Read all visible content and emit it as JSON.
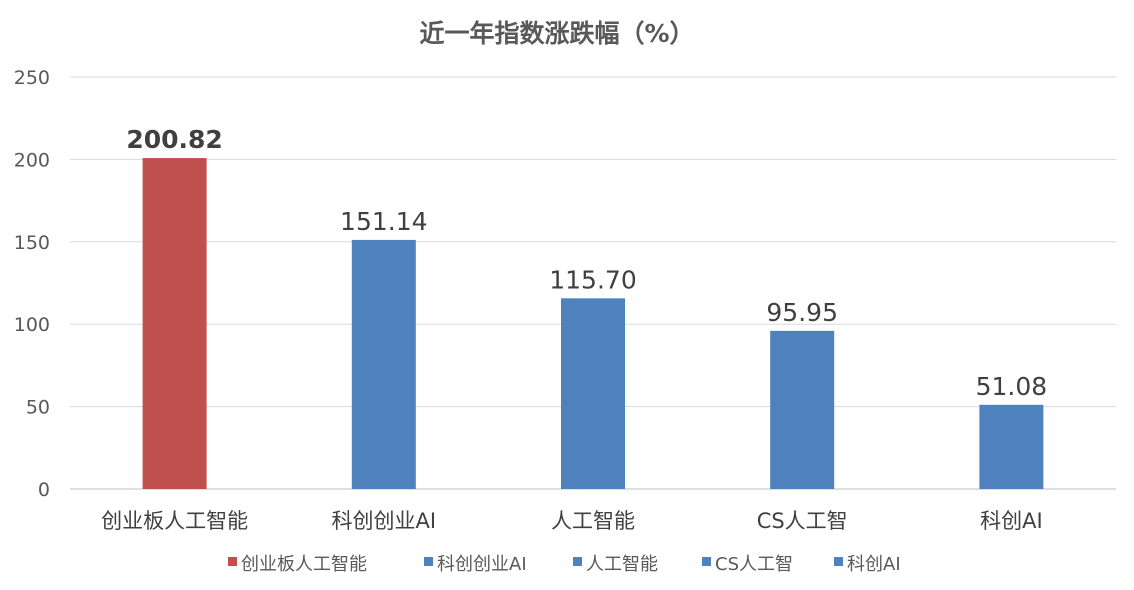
{
  "chart_data": {
    "type": "bar",
    "title": "近一年指数涨跌幅（%）",
    "categories": [
      "创业板人工智能",
      "科创创业AI",
      "人工智能",
      "CS人工智",
      "科创AI"
    ],
    "values": [
      200.82,
      151.14,
      115.7,
      95.95,
      51.08
    ],
    "value_labels": [
      "200.82",
      "151.14",
      "115.70",
      "95.95",
      "51.08"
    ],
    "colors": [
      "#C0504D",
      "#4F81BD",
      "#4F81BD",
      "#4F81BD",
      "#4F81BD"
    ],
    "highlight_label_color": "#C00000",
    "ylim": [
      0,
      250
    ],
    "yticks": [
      0,
      50,
      100,
      150,
      200,
      250
    ],
    "grid": true,
    "legend": "bottom",
    "xlabel": "",
    "ylabel": ""
  }
}
